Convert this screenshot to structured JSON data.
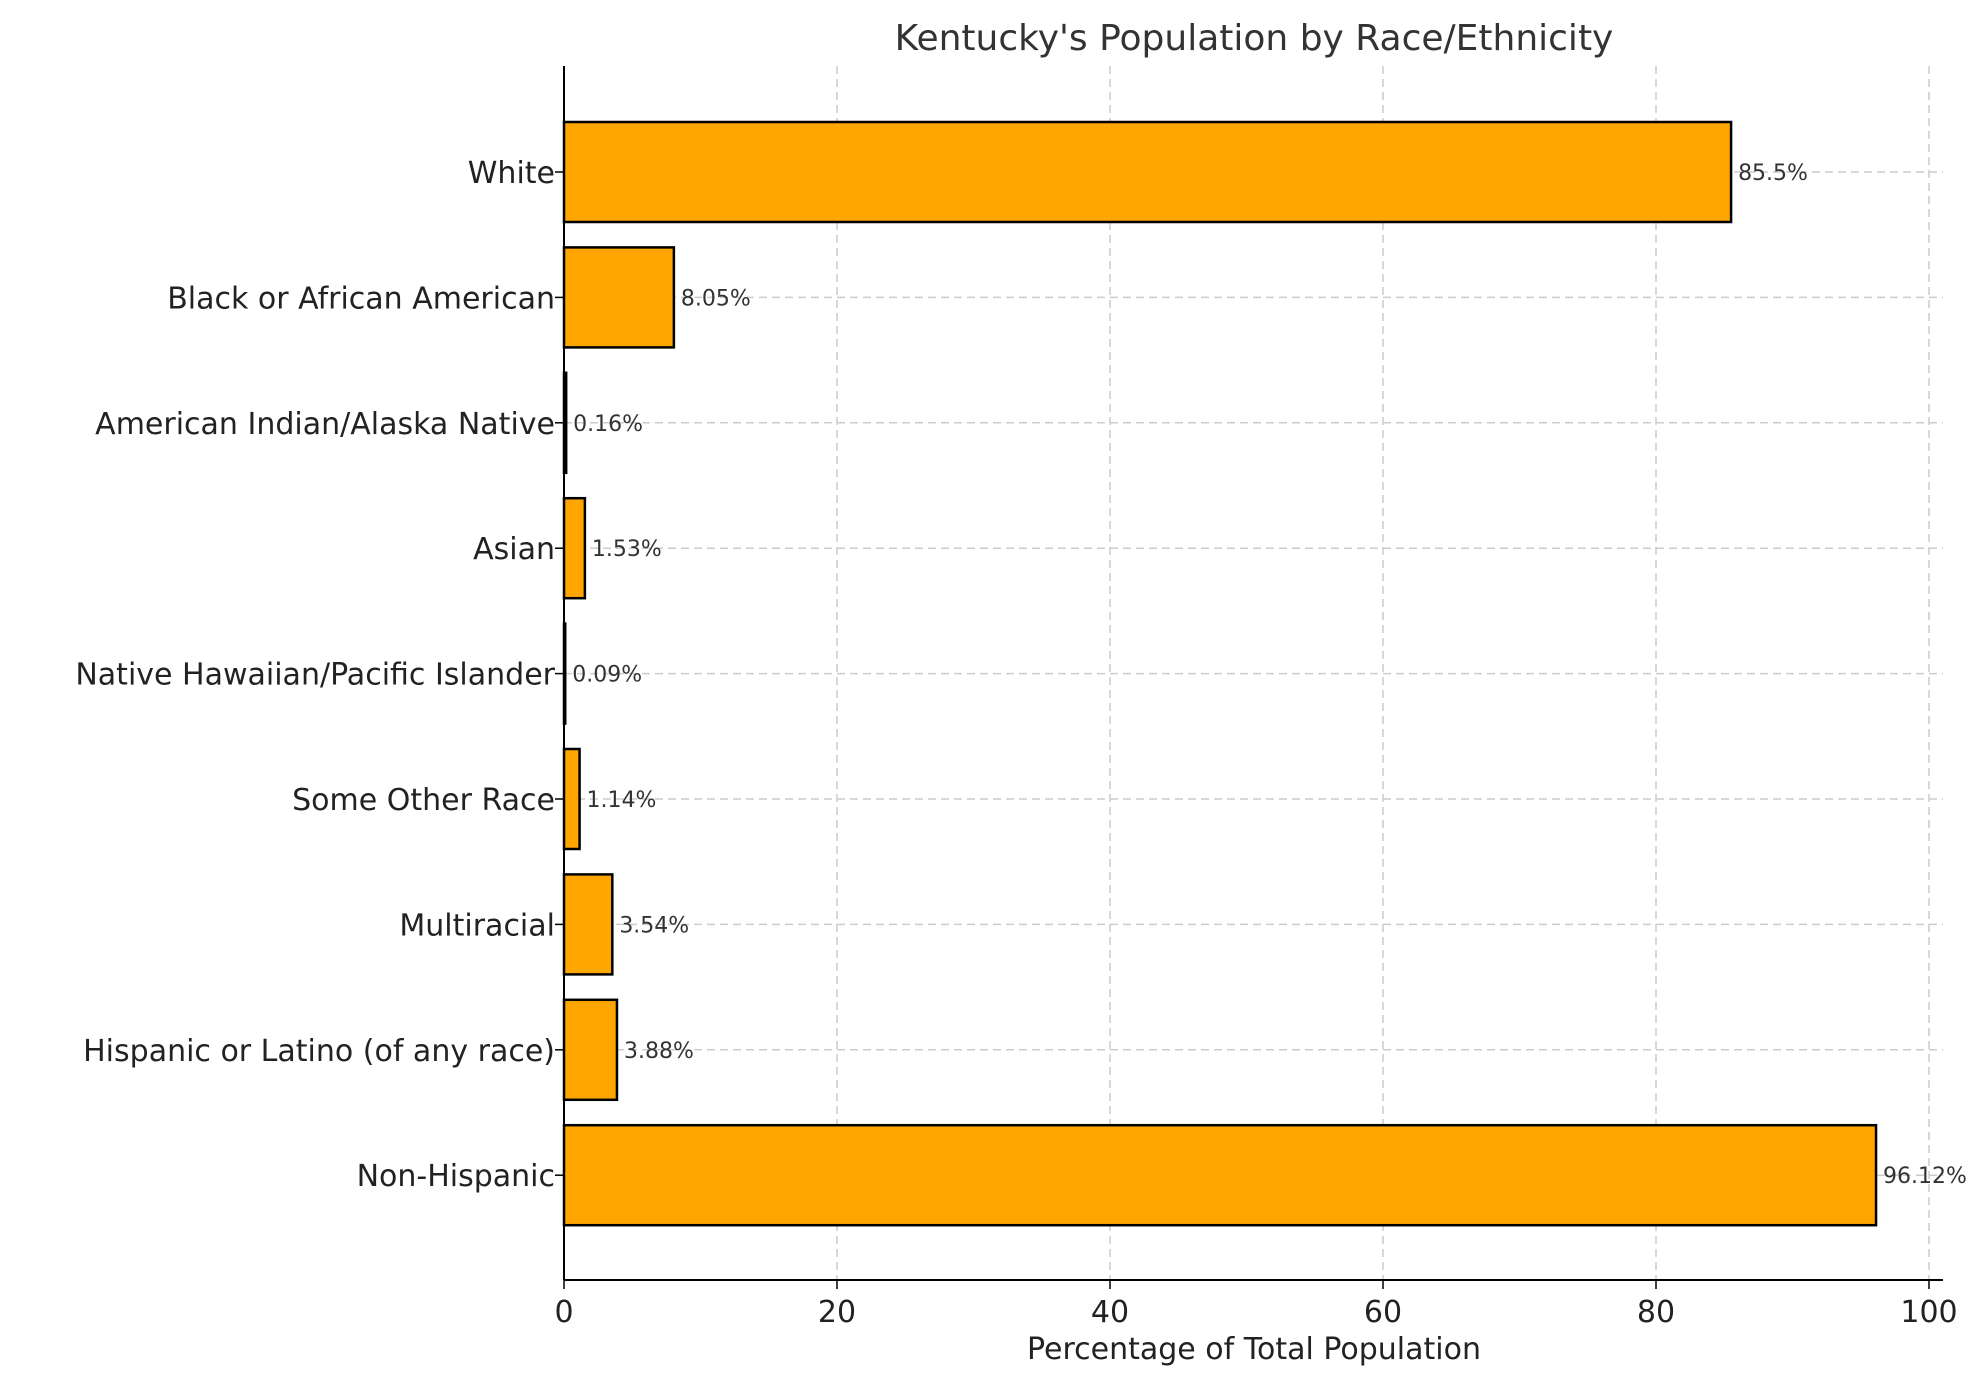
{
  "chart_data": {
    "type": "bar",
    "orientation": "horizontal",
    "title": "Kentucky's Population by Race/Ethnicity",
    "xlabel": "Percentage of Total Population",
    "ylabel": "",
    "categories": [
      "White",
      "Black or African American",
      "American Indian/Alaska Native",
      "Asian",
      "Native Hawaiian/Pacific Islander",
      "Some Other Race",
      "Multiracial",
      "Hispanic or Latino (of any race)",
      "Non-Hispanic"
    ],
    "values": [
      85.5,
      8.05,
      0.16,
      1.53,
      0.09,
      1.14,
      3.54,
      3.88,
      96.12
    ],
    "data_labels": [
      "85.5%",
      "8.05%",
      "0.16%",
      "1.53%",
      "0.09%",
      "1.14%",
      "3.54%",
      "3.88%",
      "96.12%"
    ],
    "xlim": [
      0,
      100
    ],
    "xticks": [
      "0",
      "20",
      "40",
      "60",
      "80",
      "100"
    ],
    "grid": true,
    "bar_color": "#FFA500",
    "edge_color": "#000000"
  }
}
